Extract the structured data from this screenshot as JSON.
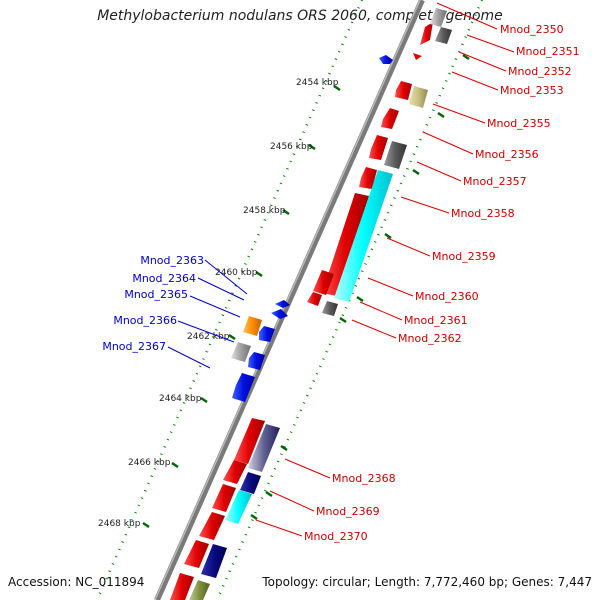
{
  "title": "Methylobacterium nodulans ORS 2060, complete genome",
  "footer": {
    "accession": "Accession: NC_011894",
    "summary": "Topology: circular; Length: 7,772,460 bp; Genes: 7,447"
  },
  "kbp_labels": [
    "2454 kbp",
    "2456 kbp",
    "2458 kbp",
    "2460 kbp",
    "2462 kbp",
    "2464 kbp",
    "2466 kbp",
    "2468 kbp"
  ],
  "gene_labels_right": [
    "Mnod_2350",
    "Mnod_2351",
    "Mnod_2352",
    "Mnod_2353",
    "Mnod_2355",
    "Mnod_2356",
    "Mnod_2357",
    "Mnod_2358",
    "Mnod_2359",
    "Mnod_2360",
    "Mnod_2361",
    "Mnod_2362",
    "Mnod_2368",
    "Mnod_2369",
    "Mnod_2370"
  ],
  "gene_labels_left": [
    "Mnod_2363",
    "Mnod_2364",
    "Mnod_2365",
    "Mnod_2366",
    "Mnod_2367"
  ],
  "colors": {
    "forward_gene": "#e00000",
    "reverse_gene": "#0000e0",
    "right_label": "#cc0000",
    "left_label": "#0000cc",
    "backbone": "#808080",
    "tick": "#008800",
    "cyan_feature": "#00ffff",
    "orange_feature": "#ff8c00",
    "grey_feature": "#a0a0a0",
    "olive_feature": "#c8c080",
    "navy_feature": "#0a0a80"
  }
}
